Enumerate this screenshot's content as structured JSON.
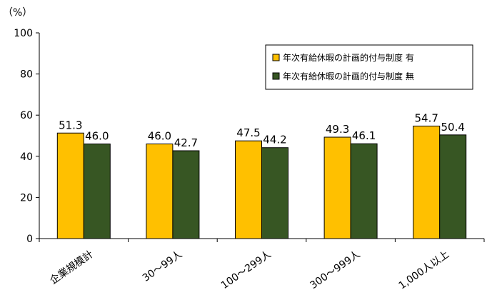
{
  "chart_data": {
    "type": "bar",
    "unit_label": "（%）",
    "categories": [
      "企業規模計",
      "30～99人",
      "100～299人",
      "300～999人",
      "1,000人以上"
    ],
    "series": [
      {
        "name": "年次有給休暇の計画的付与制度 有",
        "color": "#FFC000",
        "values": [
          51.3,
          46.0,
          47.5,
          49.3,
          54.7
        ],
        "labels": [
          "51.3",
          "46.0",
          "47.5",
          "49.3",
          "54.7"
        ]
      },
      {
        "name": "年次有給休暇の計画的付与制度 無",
        "color": "#375623",
        "values": [
          46.0,
          42.7,
          44.2,
          46.1,
          50.4
        ],
        "labels": [
          "46.0",
          "42.7",
          "44.2",
          "46.1",
          "50.4"
        ]
      }
    ],
    "ylim": [
      0,
      100
    ],
    "yticks": [
      "0",
      "20",
      "40",
      "60",
      "80",
      "100"
    ],
    "grid": false,
    "legend_position": "top-right"
  }
}
